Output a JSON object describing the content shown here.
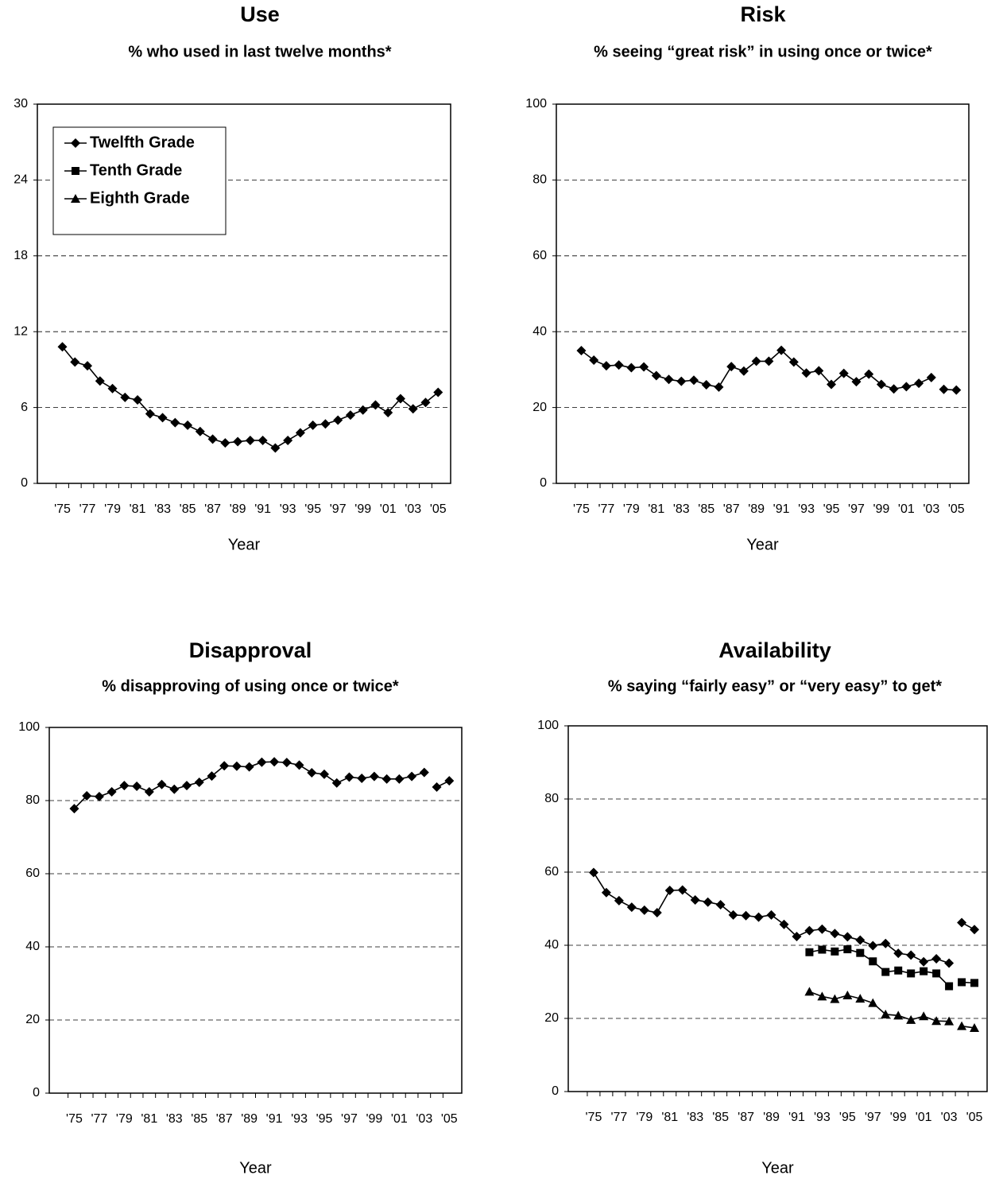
{
  "chart_data": [
    {
      "type": "line",
      "title": "Use",
      "subtitle": "% who used in last twelve months*",
      "x_label": "Year",
      "categories": [
        "'75",
        null,
        "'77",
        null,
        "'79",
        null,
        "'81",
        null,
        "'83",
        null,
        "'85",
        null,
        "'87",
        null,
        "'89",
        null,
        "'91",
        null,
        "'93",
        null,
        "'95",
        null,
        "'97",
        null,
        "'99",
        null,
        "'01",
        null,
        "'03",
        null,
        "'05"
      ],
      "series": [
        {
          "name": "Twelfth Grade",
          "color": "#000000",
          "marker": "diamond",
          "values": [
            10.8,
            9.6,
            9.3,
            8.1,
            7.5,
            6.8,
            6.6,
            5.5,
            5.2,
            4.8,
            4.6,
            4.1,
            3.5,
            3.2,
            3.3,
            3.4,
            3.4,
            2.8,
            3.4,
            4.0,
            4.6,
            4.7,
            5.0,
            5.4,
            5.8,
            6.2,
            5.6,
            6.7,
            5.9,
            6.4,
            7.2
          ]
        },
        {
          "name": "Tenth Grade",
          "color": "#000000",
          "marker": "square",
          "values": [
            null,
            null,
            null,
            null,
            null,
            null,
            null,
            null,
            null,
            null,
            null,
            null,
            null,
            null,
            null,
            null,
            null,
            null,
            null,
            null,
            null,
            null,
            null,
            null,
            null,
            null,
            null,
            null,
            null,
            null,
            null
          ]
        },
        {
          "name": "Eighth Grade",
          "color": "#000000",
          "marker": "triangle",
          "values": [
            null,
            null,
            null,
            null,
            null,
            null,
            null,
            null,
            null,
            null,
            null,
            null,
            null,
            null,
            null,
            null,
            null,
            null,
            null,
            null,
            null,
            null,
            null,
            null,
            null,
            null,
            null,
            null,
            null,
            null,
            null
          ]
        }
      ],
      "ylim": [
        0,
        30
      ],
      "yticks": [
        0,
        6,
        12,
        18,
        24,
        30
      ],
      "grid": true,
      "legend": "upper left"
    },
    {
      "type": "line",
      "title": "Risk",
      "subtitle": "% seeing “great risk” in using once or twice*",
      "x_label": "Year",
      "categories": [
        "'75",
        null,
        "'77",
        null,
        "'79",
        null,
        "'81",
        null,
        "'83",
        null,
        "'85",
        null,
        "'87",
        null,
        "'89",
        null,
        "'91",
        null,
        "'93",
        null,
        "'95",
        null,
        "'97",
        null,
        "'99",
        null,
        "'01",
        null,
        "'03",
        null,
        "'05"
      ],
      "series": [
        {
          "name": "Twelfth Grade",
          "color": "#000000",
          "marker": "diamond",
          "values": [
            35.0,
            32.5,
            31.0,
            31.2,
            30.5,
            30.7,
            28.4,
            27.4,
            26.9,
            27.2,
            26.0,
            25.4,
            30.8,
            29.6,
            32.2,
            32.2,
            35.1,
            32.0,
            29.1,
            29.7,
            26.1,
            29.0,
            26.8,
            28.8,
            26.1,
            24.9,
            25.5,
            26.4,
            27.9,
            null,
            null
          ]
        },
        {
          "name": "Twelfth Grade",
          "color": "#000000",
          "marker": "diamond",
          "values": [
            null,
            null,
            null,
            null,
            null,
            null,
            null,
            null,
            null,
            null,
            null,
            null,
            null,
            null,
            null,
            null,
            null,
            null,
            null,
            null,
            null,
            null,
            null,
            null,
            null,
            null,
            null,
            null,
            null,
            24.8,
            24.6
          ]
        }
      ],
      "ylim": [
        0,
        100
      ],
      "yticks": [
        0,
        20,
        40,
        60,
        80,
        100
      ],
      "grid": true
    },
    {
      "type": "line",
      "title": "Disapproval",
      "subtitle": "% disapproving of using once or twice*",
      "x_label": "Year",
      "categories": [
        "'75",
        null,
        "'77",
        null,
        "'79",
        null,
        "'81",
        null,
        "'83",
        null,
        "'85",
        null,
        "'87",
        null,
        "'89",
        null,
        "'91",
        null,
        "'93",
        null,
        "'95",
        null,
        "'97",
        null,
        "'99",
        null,
        "'01",
        null,
        "'03",
        null,
        "'05"
      ],
      "series": [
        {
          "name": "Twelfth Grade",
          "color": "#000000",
          "marker": "diamond",
          "values": [
            77.8,
            81.3,
            81.1,
            82.4,
            84.1,
            83.9,
            82.4,
            84.4,
            83.1,
            84.1,
            85.0,
            86.7,
            89.5,
            89.4,
            89.2,
            90.5,
            90.6,
            90.4,
            89.7,
            87.6,
            87.2,
            84.8,
            86.4,
            86.1,
            86.6,
            85.9,
            85.9,
            86.6,
            87.7,
            null,
            null
          ]
        },
        {
          "name": "Twelfth Grade",
          "color": "#000000",
          "marker": "diamond",
          "values": [
            null,
            null,
            null,
            null,
            null,
            null,
            null,
            null,
            null,
            null,
            null,
            null,
            null,
            null,
            null,
            null,
            null,
            null,
            null,
            null,
            null,
            null,
            null,
            null,
            null,
            null,
            null,
            null,
            null,
            83.7,
            85.4
          ]
        }
      ],
      "ylim": [
        0,
        100
      ],
      "yticks": [
        0,
        20,
        40,
        60,
        80,
        100
      ],
      "grid": true
    },
    {
      "type": "line",
      "title": "Availability",
      "subtitle": "% saying “fairly easy” or “very easy” to get*",
      "x_label": "Year",
      "categories": [
        "'75",
        null,
        "'77",
        null,
        "'79",
        null,
        "'81",
        null,
        "'83",
        null,
        "'85",
        null,
        "'87",
        null,
        "'89",
        null,
        "'91",
        null,
        "'93",
        null,
        "'95",
        null,
        "'97",
        null,
        "'99",
        null,
        "'01",
        null,
        "'03",
        null,
        "'05"
      ],
      "series": [
        {
          "name": "Twelfth Grade",
          "color": "#000000",
          "marker": "diamond",
          "values": [
            59.9,
            54.4,
            52.2,
            50.4,
            49.6,
            48.9,
            55.0,
            55.1,
            52.4,
            51.8,
            51.1,
            48.3,
            48.1,
            47.7,
            48.3,
            45.7,
            42.4,
            44.0,
            44.4,
            43.2,
            42.3,
            41.4,
            39.9,
            40.5,
            37.8,
            37.3,
            35.5,
            36.3,
            35.1,
            null,
            null
          ]
        },
        {
          "name": "Twelfth Grade",
          "color": "#000000",
          "marker": "diamond",
          "values": [
            null,
            null,
            null,
            null,
            null,
            null,
            null,
            null,
            null,
            null,
            null,
            null,
            null,
            null,
            null,
            null,
            null,
            null,
            null,
            null,
            null,
            null,
            null,
            null,
            null,
            null,
            null,
            null,
            null,
            46.2,
            44.3
          ]
        },
        {
          "name": "Tenth Grade",
          "color": "#000000",
          "marker": "square",
          "values": [
            null,
            null,
            null,
            null,
            null,
            null,
            null,
            null,
            null,
            null,
            null,
            null,
            null,
            null,
            null,
            null,
            null,
            38.1,
            38.8,
            38.3,
            38.9,
            37.9,
            35.6,
            32.7,
            33.1,
            32.3,
            32.9,
            32.3,
            28.8,
            null,
            null
          ]
        },
        {
          "name": "Tenth Grade",
          "color": "#000000",
          "marker": "square",
          "values": [
            null,
            null,
            null,
            null,
            null,
            null,
            null,
            null,
            null,
            null,
            null,
            null,
            null,
            null,
            null,
            null,
            null,
            null,
            null,
            null,
            null,
            null,
            null,
            null,
            null,
            null,
            null,
            null,
            null,
            29.9,
            29.7
          ]
        },
        {
          "name": "Eighth Grade",
          "color": "#000000",
          "marker": "triangle",
          "values": [
            null,
            null,
            null,
            null,
            null,
            null,
            null,
            null,
            null,
            null,
            null,
            null,
            null,
            null,
            null,
            null,
            null,
            27.3,
            26.0,
            25.3,
            26.3,
            25.4,
            24.2,
            21.1,
            20.8,
            19.6,
            20.6,
            19.3,
            19.2,
            null,
            null
          ]
        },
        {
          "name": "Eighth Grade",
          "color": "#000000",
          "marker": "triangle",
          "values": [
            null,
            null,
            null,
            null,
            null,
            null,
            null,
            null,
            null,
            null,
            null,
            null,
            null,
            null,
            null,
            null,
            null,
            null,
            null,
            null,
            null,
            null,
            null,
            null,
            null,
            null,
            null,
            null,
            null,
            17.9,
            17.4
          ]
        }
      ],
      "ylim": [
        0,
        100
      ],
      "yticks": [
        0,
        20,
        40,
        60,
        80,
        100
      ],
      "grid": true
    }
  ]
}
